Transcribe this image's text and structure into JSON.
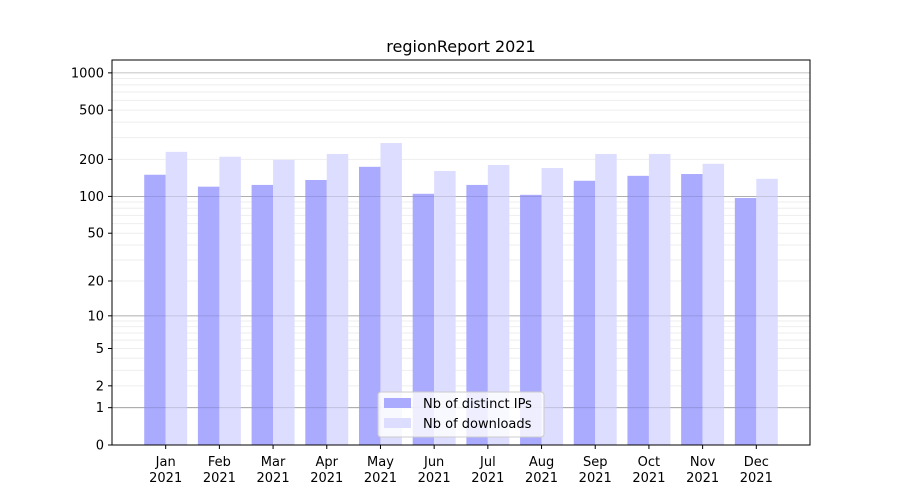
{
  "chart_data": {
    "type": "bar",
    "title": "regionReport 2021",
    "xlabel": "",
    "ylabel": "",
    "yscale": "log(1+y)",
    "ylim": [
      0,
      1270
    ],
    "yticks": [
      0,
      1,
      2,
      5,
      10,
      20,
      50,
      100,
      200,
      500,
      1000
    ],
    "ytick_labels": [
      "0",
      "1",
      "2",
      "5",
      "10",
      "20",
      "50",
      "100",
      "200",
      "500",
      "1000"
    ],
    "grid": true,
    "legend_placement": "bottom-center",
    "categories": [
      [
        "Jan",
        "2021"
      ],
      [
        "Feb",
        "2021"
      ],
      [
        "Mar",
        "2021"
      ],
      [
        "Apr",
        "2021"
      ],
      [
        "May",
        "2021"
      ],
      [
        "Jun",
        "2021"
      ],
      [
        "Jul",
        "2021"
      ],
      [
        "Aug",
        "2021"
      ],
      [
        "Sep",
        "2021"
      ],
      [
        "Oct",
        "2021"
      ],
      [
        "Nov",
        "2021"
      ],
      [
        "Dec",
        "2021"
      ]
    ],
    "series": [
      {
        "name": "Nb of distinct IPs",
        "color": "#aaaaff",
        "values": [
          150,
          120,
          124,
          136,
          174,
          105,
          124,
          103,
          134,
          147,
          152,
          97
        ]
      },
      {
        "name": "Nb of downloads",
        "color": "#ddddff",
        "values": [
          230,
          210,
          198,
          221,
          271,
          161,
          180,
          170,
          221,
          221,
          184,
          139
        ]
      }
    ]
  }
}
